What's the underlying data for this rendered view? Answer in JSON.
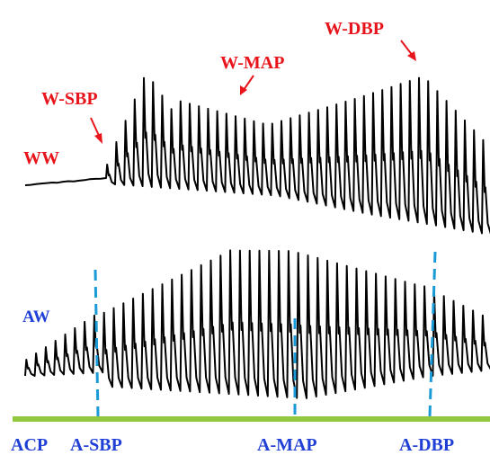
{
  "labels": {
    "ww": "WW",
    "w_sbp": "W-SBP",
    "w_map": "W-MAP",
    "w_dbp": "W-DBP",
    "aw": "AW",
    "acp": "ACP",
    "a_sbp": "A-SBP",
    "a_map": "A-MAP",
    "a_dbp": "A-DBP"
  },
  "colors": {
    "trace": "#000000",
    "marker_red": "#e8141b",
    "marker_blue": "#1f3fd6",
    "dashed": "#1a9ad6",
    "baseline": "#92c83e"
  }
}
